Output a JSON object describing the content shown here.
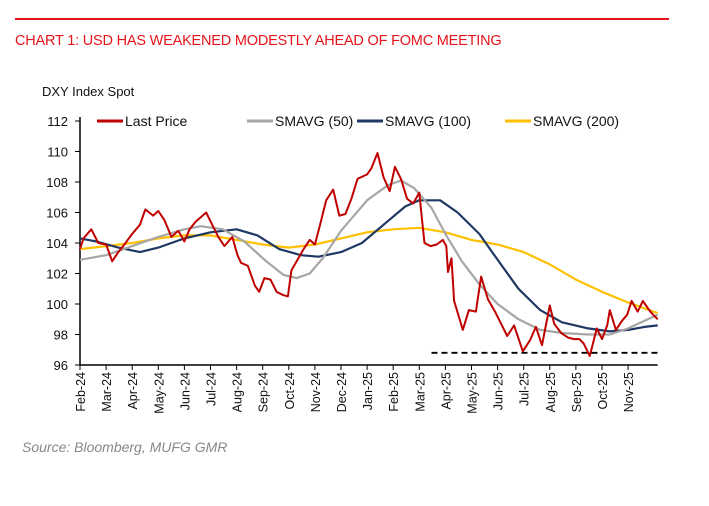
{
  "header": {
    "title": "CHART 1: USD HAS WEAKENED MODESTLY AHEAD OF FOMC MEETING"
  },
  "footer": {
    "source": "Source: Bloomberg, MUFG GMR"
  },
  "colors": {
    "accent": "#e8141b",
    "last_price": "#c00000",
    "sma50": "#a6a6a6",
    "sma100": "#1f3864",
    "sma200": "#ffc000"
  },
  "chart_data": {
    "type": "line",
    "title": "",
    "ylabel": "DXY Index Spot",
    "xlabel": "",
    "ylim": [
      96,
      112
    ],
    "yticks": [
      96,
      98,
      100,
      102,
      104,
      106,
      108,
      110,
      112
    ],
    "xticks": [
      "Feb-24",
      "Mar-24",
      "Apr-24",
      "May-24",
      "Jun-24",
      "Jul-24",
      "Aug-24",
      "Sep-24",
      "Oct-24",
      "Nov-24",
      "Dec-24",
      "Jan-25",
      "Feb-25",
      "Mar-25",
      "Apr-25",
      "May-25",
      "Jun-25",
      "Jul-25",
      "Aug-25",
      "Sep-25",
      "Oct-25",
      "Nov-25"
    ],
    "xlim": [
      "2024-02-01",
      "2025-12-05"
    ],
    "grid": false,
    "legend": "top",
    "series": [
      {
        "name": "Last Price",
        "color": "#c00000",
        "points": [
          [
            "2024-02-01",
            103.6
          ],
          [
            "2024-02-05",
            104.3
          ],
          [
            "2024-02-14",
            104.9
          ],
          [
            "2024-02-22",
            104.0
          ],
          [
            "2024-03-01",
            103.9
          ],
          [
            "2024-03-08",
            102.8
          ],
          [
            "2024-03-15",
            103.4
          ],
          [
            "2024-03-22",
            103.9
          ],
          [
            "2024-04-01",
            104.6
          ],
          [
            "2024-04-10",
            105.2
          ],
          [
            "2024-04-16",
            106.2
          ],
          [
            "2024-04-25",
            105.8
          ],
          [
            "2024-05-01",
            106.1
          ],
          [
            "2024-05-08",
            105.5
          ],
          [
            "2024-05-16",
            104.4
          ],
          [
            "2024-05-24",
            104.8
          ],
          [
            "2024-06-01",
            104.1
          ],
          [
            "2024-06-07",
            104.9
          ],
          [
            "2024-06-14",
            105.4
          ],
          [
            "2024-06-26",
            106.0
          ],
          [
            "2024-07-03",
            105.2
          ],
          [
            "2024-07-10",
            104.4
          ],
          [
            "2024-07-17",
            103.8
          ],
          [
            "2024-07-26",
            104.4
          ],
          [
            "2024-08-02",
            103.2
          ],
          [
            "2024-08-06",
            102.7
          ],
          [
            "2024-08-14",
            102.5
          ],
          [
            "2024-08-22",
            101.2
          ],
          [
            "2024-08-27",
            100.8
          ],
          [
            "2024-09-03",
            101.7
          ],
          [
            "2024-09-10",
            101.6
          ],
          [
            "2024-09-17",
            100.8
          ],
          [
            "2024-09-24",
            100.6
          ],
          [
            "2024-09-30",
            100.5
          ],
          [
            "2024-10-04",
            102.2
          ],
          [
            "2024-10-11",
            102.9
          ],
          [
            "2024-10-18",
            103.6
          ],
          [
            "2024-10-25",
            104.2
          ],
          [
            "2024-11-01",
            103.9
          ],
          [
            "2024-11-06",
            105.0
          ],
          [
            "2024-11-14",
            106.8
          ],
          [
            "2024-11-22",
            107.5
          ],
          [
            "2024-11-29",
            105.8
          ],
          [
            "2024-12-06",
            105.9
          ],
          [
            "2024-12-13",
            106.9
          ],
          [
            "2024-12-20",
            108.2
          ],
          [
            "2024-12-31",
            108.5
          ],
          [
            "2025-01-06",
            108.9
          ],
          [
            "2025-01-13",
            109.9
          ],
          [
            "2025-01-20",
            108.3
          ],
          [
            "2025-01-27",
            107.4
          ],
          [
            "2025-02-03",
            109.0
          ],
          [
            "2025-02-10",
            108.2
          ],
          [
            "2025-02-17",
            106.9
          ],
          [
            "2025-02-24",
            106.6
          ],
          [
            "2025-03-01",
            107.3
          ],
          [
            "2025-03-04",
            105.6
          ],
          [
            "2025-03-07",
            104.0
          ],
          [
            "2025-03-14",
            103.8
          ],
          [
            "2025-03-21",
            103.9
          ],
          [
            "2025-03-28",
            104.2
          ],
          [
            "2025-04-02",
            103.8
          ],
          [
            "2025-04-04",
            102.1
          ],
          [
            "2025-04-08",
            103.0
          ],
          [
            "2025-04-11",
            100.2
          ],
          [
            "2025-04-21",
            98.3
          ],
          [
            "2025-04-28",
            99.6
          ],
          [
            "2025-05-06",
            99.5
          ],
          [
            "2025-05-12",
            101.8
          ],
          [
            "2025-05-20",
            100.3
          ],
          [
            "2025-05-28",
            99.5
          ],
          [
            "2025-06-05",
            98.7
          ],
          [
            "2025-06-12",
            97.9
          ],
          [
            "2025-06-20",
            98.6
          ],
          [
            "2025-06-30",
            96.9
          ],
          [
            "2025-07-08",
            97.6
          ],
          [
            "2025-07-15",
            98.5
          ],
          [
            "2025-07-22",
            97.3
          ],
          [
            "2025-07-31",
            99.9
          ],
          [
            "2025-08-06",
            98.7
          ],
          [
            "2025-08-14",
            98.1
          ],
          [
            "2025-08-22",
            97.8
          ],
          [
            "2025-08-29",
            97.7
          ],
          [
            "2025-09-05",
            97.7
          ],
          [
            "2025-09-10",
            97.4
          ],
          [
            "2025-09-17",
            96.6
          ],
          [
            "2025-09-25",
            98.4
          ],
          [
            "2025-10-01",
            97.7
          ],
          [
            "2025-10-07",
            98.6
          ],
          [
            "2025-10-10",
            99.6
          ],
          [
            "2025-10-17",
            98.3
          ],
          [
            "2025-10-24",
            98.9
          ],
          [
            "2025-10-30",
            99.3
          ],
          [
            "2025-11-05",
            100.2
          ],
          [
            "2025-11-12",
            99.5
          ],
          [
            "2025-11-18",
            100.2
          ],
          [
            "2025-11-24",
            99.7
          ],
          [
            "2025-11-28",
            99.4
          ],
          [
            "2025-12-05",
            99.0
          ]
        ]
      },
      {
        "name": "SMAVG (50)",
        "color": "#a6a6a6",
        "points": [
          [
            "2024-02-01",
            102.9
          ],
          [
            "2024-03-01",
            103.2
          ],
          [
            "2024-04-01",
            103.8
          ],
          [
            "2024-05-01",
            104.4
          ],
          [
            "2024-06-01",
            104.9
          ],
          [
            "2024-06-20",
            105.1
          ],
          [
            "2024-07-15",
            104.9
          ],
          [
            "2024-08-10",
            104.1
          ],
          [
            "2024-09-05",
            102.8
          ],
          [
            "2024-09-25",
            101.9
          ],
          [
            "2024-10-10",
            101.7
          ],
          [
            "2024-10-25",
            102.0
          ],
          [
            "2024-11-10",
            103.0
          ],
          [
            "2024-12-01",
            104.8
          ],
          [
            "2025-01-01",
            106.8
          ],
          [
            "2025-01-25",
            107.8
          ],
          [
            "2025-02-10",
            108.1
          ],
          [
            "2025-02-25",
            107.6
          ],
          [
            "2025-03-15",
            106.3
          ],
          [
            "2025-04-01",
            104.6
          ],
          [
            "2025-04-20",
            102.8
          ],
          [
            "2025-05-10",
            101.3
          ],
          [
            "2025-06-01",
            100.0
          ],
          [
            "2025-06-25",
            99.0
          ],
          [
            "2025-07-20",
            98.3
          ],
          [
            "2025-08-15",
            98.1
          ],
          [
            "2025-09-15",
            98.0
          ],
          [
            "2025-10-10",
            98.0
          ],
          [
            "2025-11-01",
            98.4
          ],
          [
            "2025-11-20",
            98.9
          ],
          [
            "2025-12-05",
            99.3
          ]
        ]
      },
      {
        "name": "SMAVG (100)",
        "color": "#1f3864",
        "points": [
          [
            "2024-02-01",
            104.3
          ],
          [
            "2024-02-20",
            104.1
          ],
          [
            "2024-03-15",
            103.7
          ],
          [
            "2024-04-10",
            103.4
          ],
          [
            "2024-05-01",
            103.7
          ],
          [
            "2024-06-01",
            104.3
          ],
          [
            "2024-07-01",
            104.7
          ],
          [
            "2024-08-01",
            104.9
          ],
          [
            "2024-08-25",
            104.5
          ],
          [
            "2024-09-20",
            103.6
          ],
          [
            "2024-10-15",
            103.2
          ],
          [
            "2024-11-05",
            103.1
          ],
          [
            "2024-12-01",
            103.4
          ],
          [
            "2024-12-25",
            104.0
          ],
          [
            "2025-01-20",
            105.2
          ],
          [
            "2025-02-15",
            106.4
          ],
          [
            "2025-03-01",
            106.8
          ],
          [
            "2025-03-25",
            106.8
          ],
          [
            "2025-04-15",
            106.0
          ],
          [
            "2025-05-10",
            104.6
          ],
          [
            "2025-06-01",
            102.9
          ],
          [
            "2025-06-25",
            101.0
          ],
          [
            "2025-07-20",
            99.6
          ],
          [
            "2025-08-15",
            98.8
          ],
          [
            "2025-09-15",
            98.4
          ],
          [
            "2025-10-10",
            98.2
          ],
          [
            "2025-11-01",
            98.3
          ],
          [
            "2025-11-20",
            98.5
          ],
          [
            "2025-12-05",
            98.6
          ]
        ]
      },
      {
        "name": "SMAVG (200)",
        "color": "#ffc000",
        "points": [
          [
            "2024-02-01",
            103.6
          ],
          [
            "2024-03-01",
            103.8
          ],
          [
            "2024-04-01",
            104.0
          ],
          [
            "2024-05-01",
            104.3
          ],
          [
            "2024-06-01",
            104.5
          ],
          [
            "2024-07-01",
            104.5
          ],
          [
            "2024-08-01",
            104.2
          ],
          [
            "2024-09-01",
            103.9
          ],
          [
            "2024-10-01",
            103.7
          ],
          [
            "2024-11-01",
            103.9
          ],
          [
            "2024-12-01",
            104.3
          ],
          [
            "2025-01-01",
            104.7
          ],
          [
            "2025-02-01",
            104.9
          ],
          [
            "2025-03-01",
            105.0
          ],
          [
            "2025-04-01",
            104.7
          ],
          [
            "2025-05-01",
            104.2
          ],
          [
            "2025-06-01",
            103.9
          ],
          [
            "2025-07-01",
            103.4
          ],
          [
            "2025-08-01",
            102.6
          ],
          [
            "2025-09-01",
            101.6
          ],
          [
            "2025-10-01",
            100.8
          ],
          [
            "2025-11-01",
            100.1
          ],
          [
            "2025-12-05",
            99.4
          ]
        ]
      }
    ],
    "reference_line": {
      "style": "dashed",
      "value": 96.8,
      "from": "2025-03-15",
      "to": "2025-12-05",
      "color": "#000000"
    }
  }
}
